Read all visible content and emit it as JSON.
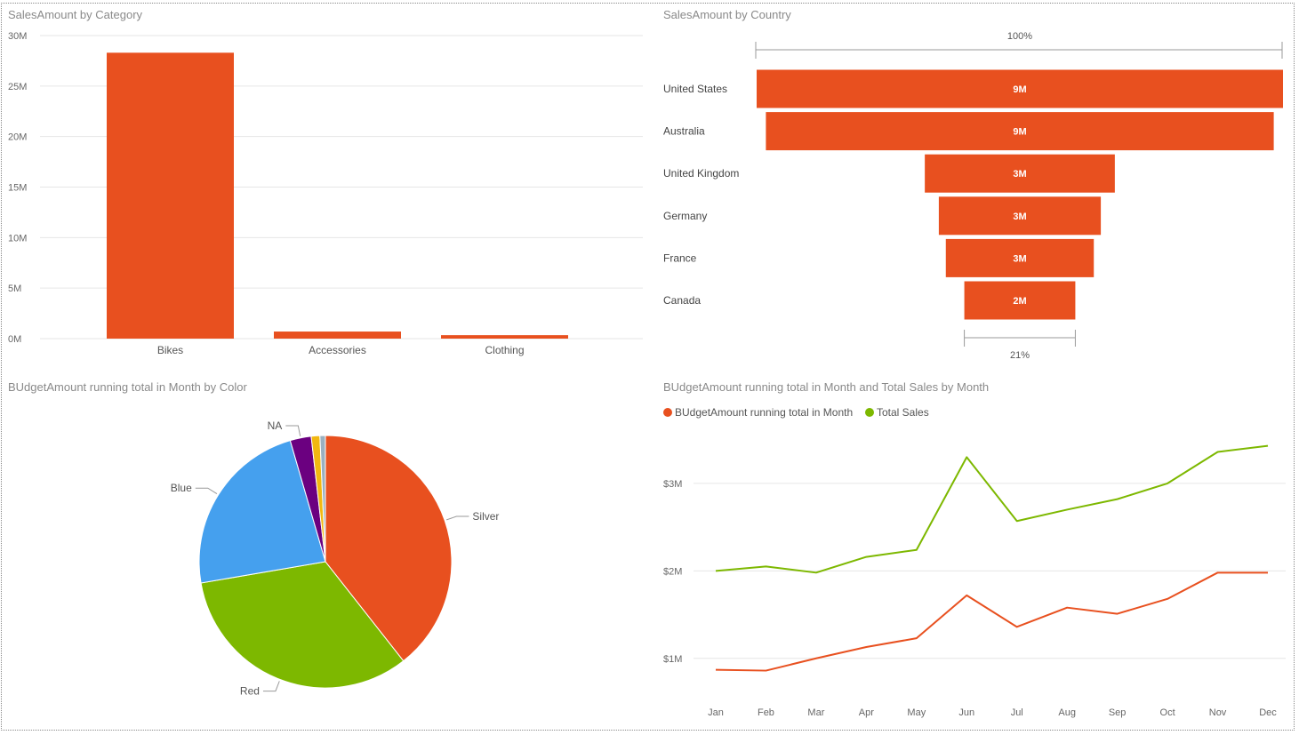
{
  "colors": {
    "orange": "#E8501F",
    "green": "#7DB800",
    "blue": "#45A0EE",
    "purple": "#6B0080",
    "yellow": "#F2B811",
    "grey": "#9AB0C0",
    "grid": "#E6E6E6"
  },
  "chart_data": [
    {
      "id": "category",
      "type": "bar",
      "title": "SalesAmount by Category",
      "categories": [
        "Bikes",
        "Accessories",
        "Clothing"
      ],
      "values": [
        28.3,
        0.7,
        0.34
      ],
      "unit": "M",
      "ylim": [
        0,
        30
      ],
      "ticks": [
        0,
        5,
        10,
        15,
        20,
        25,
        30
      ],
      "tick_labels": [
        "0M",
        "5M",
        "10M",
        "15M",
        "20M",
        "25M",
        "30M"
      ],
      "grid": true
    },
    {
      "id": "country",
      "type": "funnel",
      "title": "SalesAmount by Country",
      "categories": [
        "United States",
        "Australia",
        "United Kingdom",
        "Germany",
        "France",
        "Canada"
      ],
      "values": [
        9.39,
        9.06,
        3.39,
        2.89,
        2.64,
        1.98
      ],
      "labels": [
        "9M",
        "9M",
        "3M",
        "3M",
        "3M",
        "2M"
      ],
      "top_percent": "100%",
      "bottom_percent": "21%"
    },
    {
      "id": "color",
      "type": "pie",
      "title": "BUdgetAmount running total in Month by Color",
      "slices": [
        {
          "name": "Silver",
          "value": 39.4,
          "color": "#E8501F",
          "label": "Silver"
        },
        {
          "name": "Red",
          "value": 32.9,
          "color": "#7DB800",
          "label": "Red"
        },
        {
          "name": "Blue",
          "value": 23.2,
          "color": "#45A0EE",
          "label": "Blue"
        },
        {
          "name": "NA",
          "value": 2.7,
          "color": "#6B0080",
          "label": "NA"
        },
        {
          "name": "",
          "value": 1.1,
          "color": "#F2B811",
          "label": ""
        },
        {
          "name": "",
          "value": 0.7,
          "color": "#9AB0C0",
          "label": ""
        }
      ]
    },
    {
      "id": "monthly",
      "type": "line",
      "title": "BUdgetAmount running total in Month and Total Sales by Month",
      "categories": [
        "Jan",
        "Feb",
        "Mar",
        "Apr",
        "May",
        "Jun",
        "Jul",
        "Aug",
        "Sep",
        "Oct",
        "Nov",
        "Dec"
      ],
      "series": [
        {
          "name": "BUdgetAmount running total in Month",
          "color": "#E8501F",
          "values": [
            0.87,
            0.86,
            1.0,
            1.13,
            1.23,
            1.72,
            1.36,
            1.58,
            1.51,
            1.68,
            1.98,
            1.98
          ]
        },
        {
          "name": "Total Sales",
          "color": "#7DB800",
          "values": [
            2.0,
            2.05,
            1.98,
            2.16,
            2.24,
            3.3,
            2.57,
            2.7,
            2.82,
            3.0,
            3.36,
            3.43
          ]
        }
      ],
      "unit": "$M",
      "ticks": [
        1,
        2,
        3
      ],
      "tick_labels": [
        "$1M",
        "$2M",
        "$3M"
      ],
      "ylim": [
        0.5,
        3.7
      ],
      "legend": "top-left",
      "grid": true
    }
  ]
}
